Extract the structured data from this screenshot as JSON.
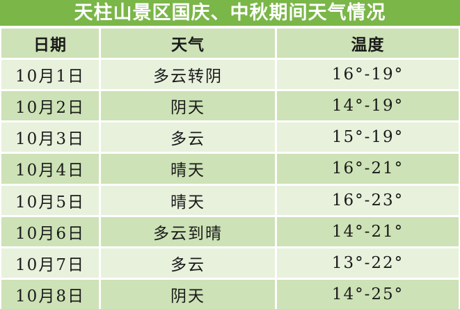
{
  "title": "天柱山景区国庆、中秋期间天气情况",
  "colors": {
    "title_bg": "#7ab648",
    "title_text": "#ffffff",
    "header_bg": "#cde2b6",
    "row_even_bg": "#cde2b6",
    "row_odd_bg": "#e7f1dc",
    "body_text": "#1a1a1a"
  },
  "table": {
    "columns": [
      {
        "label": "日期"
      },
      {
        "label": "天气"
      },
      {
        "label": "温度"
      }
    ],
    "rows": [
      {
        "date": "10月1日",
        "weather": "多云转阴",
        "temp": "16°-19°"
      },
      {
        "date": "10月2日",
        "weather": "阴天",
        "temp": "14°-19°"
      },
      {
        "date": "10月3日",
        "weather": "多云",
        "temp": "15°-19°"
      },
      {
        "date": "10月4日",
        "weather": "晴天",
        "temp": "16°-21°"
      },
      {
        "date": "10月5日",
        "weather": "晴天",
        "temp": "16°-23°"
      },
      {
        "date": "10月6日",
        "weather": "多云到晴",
        "temp": "14°-21°"
      },
      {
        "date": "10月7日",
        "weather": "多云",
        "temp": "13°-22°"
      },
      {
        "date": "10月8日",
        "weather": "阴天",
        "temp": "14°-25°"
      }
    ]
  }
}
